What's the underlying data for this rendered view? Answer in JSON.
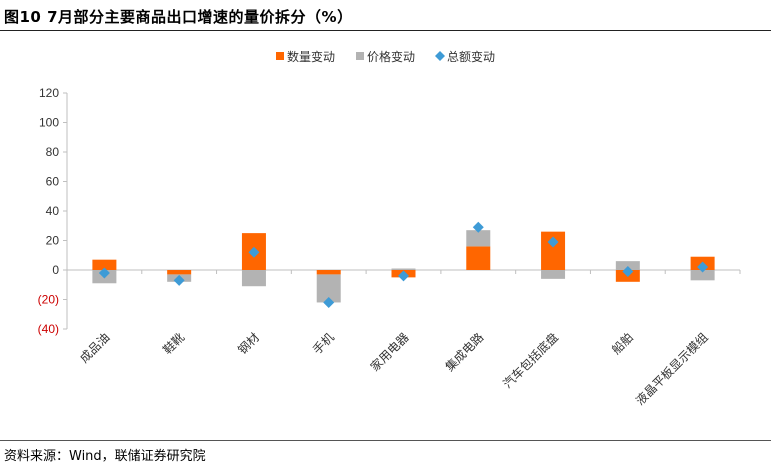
{
  "title": "图10 7月部分主要商品出口增速的量价拆分（%）",
  "source": "资料来源：Wind，联储证券研究院",
  "colors": {
    "quantity": "#FF6600",
    "price": "#B3B3B3",
    "total": "#3E9BD6",
    "negative_tick": "#CC0000",
    "axis": "#BFBFBF"
  },
  "chart_data": {
    "type": "bar",
    "stacked": true,
    "categories": [
      "成品油",
      "鞋靴",
      "钢材",
      "手机",
      "家用电器",
      "集成电路",
      "汽车包括底盘",
      "船舶",
      "液晶平板显示模组"
    ],
    "series": [
      {
        "name": "数量变动",
        "kind": "bar",
        "values": [
          7,
          -3,
          25,
          -3,
          -5,
          16,
          26,
          -8,
          9
        ]
      },
      {
        "name": "价格变动",
        "kind": "bar",
        "values": [
          -9,
          -5,
          -11,
          -19,
          1,
          11,
          -6,
          6,
          -7
        ]
      },
      {
        "name": "总额变动",
        "kind": "marker",
        "values": [
          -2,
          -7,
          12,
          -22,
          -4,
          29,
          19,
          -1,
          2
        ]
      }
    ],
    "y_ticks": [
      "120",
      "100",
      "80",
      "60",
      "40",
      "20",
      "0",
      "(20)",
      "(40)"
    ],
    "y_tick_values": [
      120,
      100,
      80,
      60,
      40,
      20,
      0,
      -20,
      -40
    ],
    "ylim": [
      -40,
      120
    ],
    "legend_position": "top-center",
    "grid": false
  }
}
